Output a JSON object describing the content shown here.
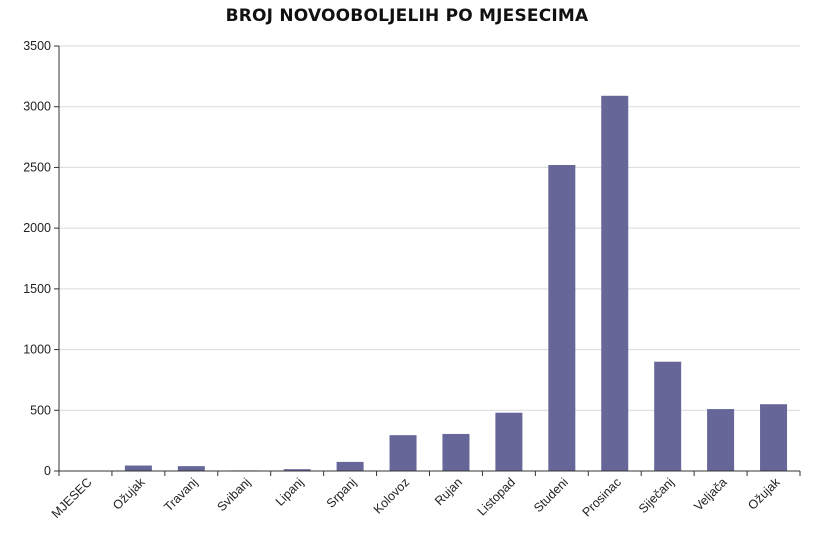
{
  "chart_data": {
    "type": "bar",
    "title": "BROJ NOVOOBOLJELIH PO MJESECIMA",
    "xlabel": "",
    "ylabel": "",
    "ylim": [
      0,
      3500
    ],
    "yticks": [
      0,
      500,
      1000,
      1500,
      2000,
      2500,
      3000,
      3500
    ],
    "grid": true,
    "legend": "none",
    "bar_color": "#666699",
    "categories": [
      "MJESEC",
      "Ožujak",
      "Travanj",
      "Svibanj",
      "Lipanj",
      "Srpanj",
      "Kolovoz",
      "Rujan",
      "Listopad",
      "Studeni",
      "Prosinac",
      "Siječanj",
      "Veljača",
      "Ožujak"
    ],
    "values": [
      0,
      45,
      40,
      5,
      15,
      75,
      295,
      305,
      480,
      2520,
      3090,
      900,
      510,
      550
    ]
  }
}
